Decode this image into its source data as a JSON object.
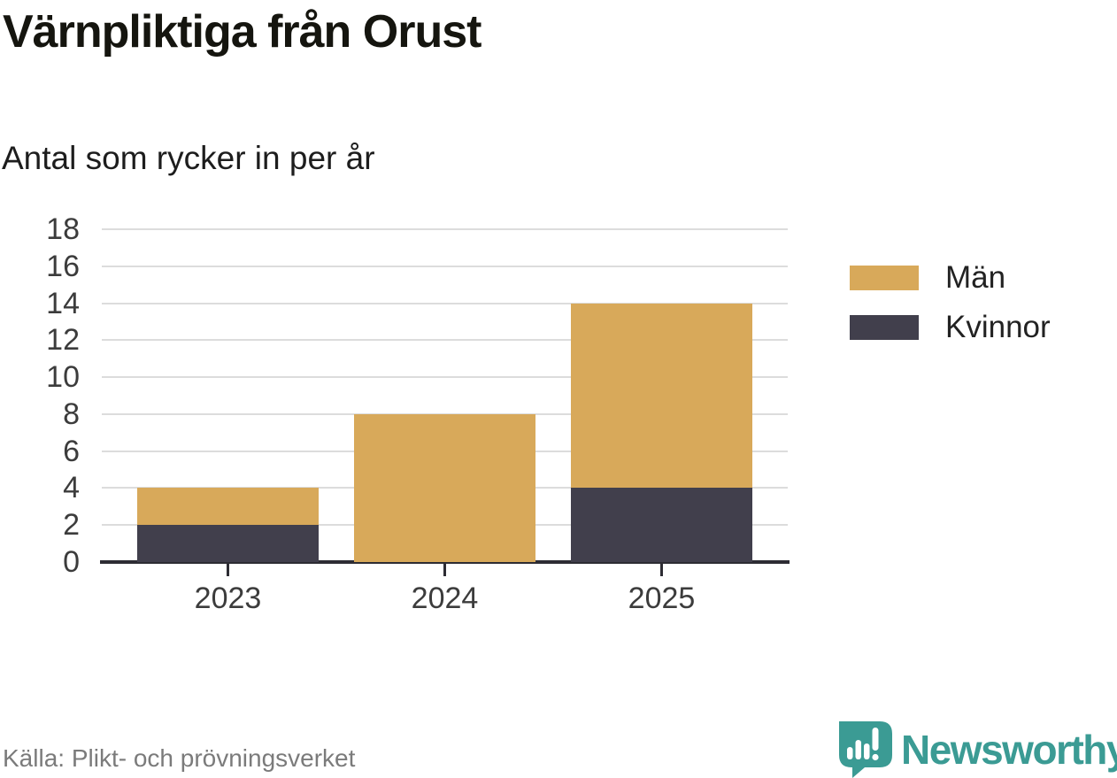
{
  "title": "Värnpliktiga från Orust",
  "subtitle": "Antal som rycker in per år",
  "source": "Källa: Plikt- och prövningsverket",
  "logo": {
    "text": "Newsworthy",
    "color": "#3b9b94"
  },
  "colors": {
    "men": "#d8a95a",
    "women": "#413f4c",
    "grid": "#dcdcdc",
    "axis": "#2d2c33",
    "tick_text": "#3c3c3c",
    "source_text": "#7b7b7b"
  },
  "chart_data": {
    "type": "bar",
    "stacked": true,
    "title": "Värnpliktiga från Orust",
    "subtitle": "Antal som rycker in per år",
    "categories": [
      "2023",
      "2024",
      "2025"
    ],
    "series": [
      {
        "name": "Män",
        "color": "#d8a95a",
        "values": [
          2,
          8,
          10
        ]
      },
      {
        "name": "Kvinnor",
        "color": "#413f4c",
        "values": [
          2,
          0,
          4
        ]
      }
    ],
    "stack_bottom_first": [
      "Kvinnor",
      "Män"
    ],
    "totals": [
      4,
      8,
      14
    ],
    "xlabel": "",
    "ylabel": "",
    "ylim": [
      0,
      18
    ],
    "yticks": [
      0,
      2,
      4,
      6,
      8,
      10,
      12,
      14,
      16,
      18
    ],
    "grid": true,
    "legend_position": "right"
  }
}
